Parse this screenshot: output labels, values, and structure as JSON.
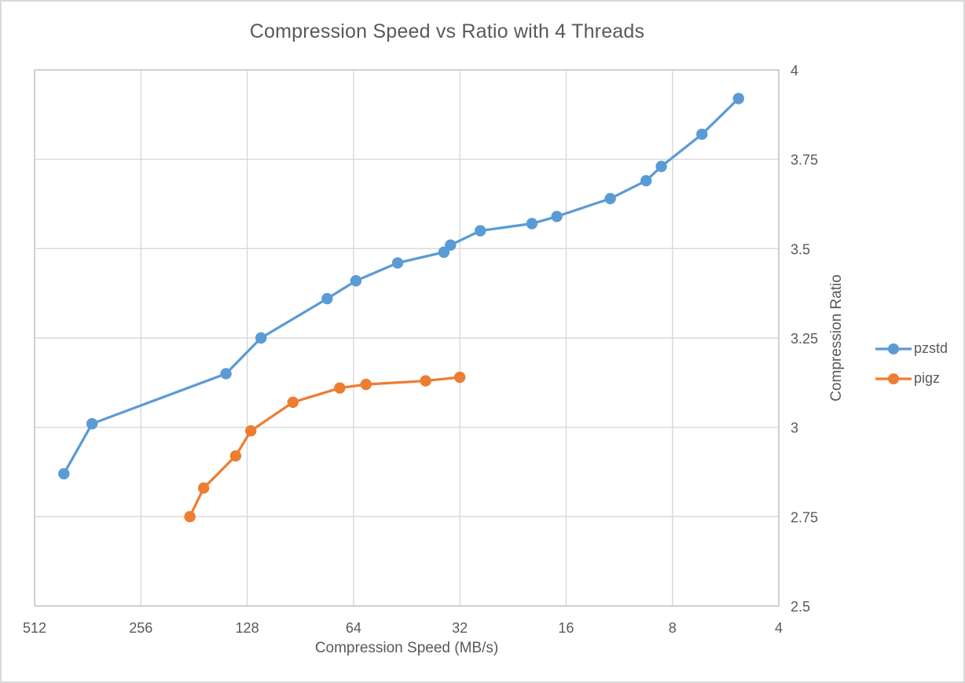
{
  "chart_data": {
    "type": "line",
    "title": "Compression Speed vs Ratio with 4 Threads",
    "xlabel": "Compression Speed (MB/s)",
    "ylabel": "Compression Ratio",
    "x_scale": "log2_reversed",
    "xlim": [
      512,
      4
    ],
    "ylim": [
      2.5,
      4
    ],
    "x_ticks": [
      512,
      256,
      128,
      64,
      32,
      16,
      8,
      4
    ],
    "y_ticks": [
      4,
      3.75,
      3.5,
      3.25,
      3,
      2.75,
      2.5
    ],
    "y_tick_labels": [
      "4",
      "3.75",
      "3.5",
      "3.25",
      "3",
      "2.75",
      "2.5"
    ],
    "grid": true,
    "legend_position": "right-center",
    "series": [
      {
        "name": "pzstd",
        "color": "#5b9bd5",
        "marker": "circle",
        "points": [
          [
            423,
            2.87
          ],
          [
            352,
            3.01
          ],
          [
            147,
            3.15
          ],
          [
            117,
            3.25
          ],
          [
            76,
            3.36
          ],
          [
            63,
            3.41
          ],
          [
            48,
            3.46
          ],
          [
            35.5,
            3.49
          ],
          [
            34,
            3.51
          ],
          [
            28,
            3.55
          ],
          [
            20,
            3.57
          ],
          [
            17,
            3.59
          ],
          [
            12,
            3.64
          ],
          [
            9.5,
            3.69
          ],
          [
            8.6,
            3.73
          ],
          [
            6.6,
            3.82
          ],
          [
            5.2,
            3.92
          ]
        ]
      },
      {
        "name": "pigz",
        "color": "#ed7d31",
        "marker": "circle",
        "points": [
          [
            186,
            2.75
          ],
          [
            170,
            2.83
          ],
          [
            138,
            2.92
          ],
          [
            125,
            2.99
          ],
          [
            95,
            3.07
          ],
          [
            70,
            3.11
          ],
          [
            59,
            3.12
          ],
          [
            40,
            3.13
          ],
          [
            32,
            3.14
          ]
        ]
      }
    ],
    "style": {
      "text_color": "#595959",
      "gridline_color": "#d9d9d9",
      "plot_border_color": "#c9c9c9",
      "background": "#ffffff"
    }
  }
}
